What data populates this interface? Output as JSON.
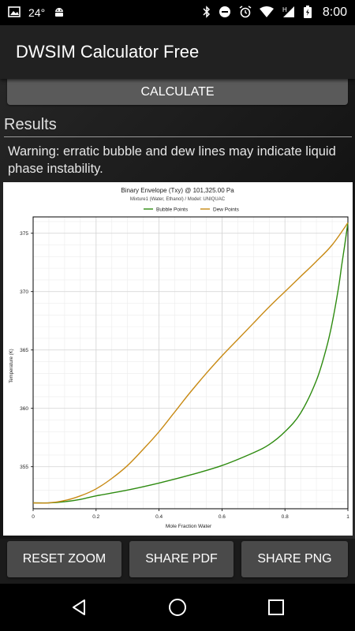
{
  "status_bar": {
    "notification_count": "24°",
    "time": "8:00"
  },
  "app_title": "DWSIM Calculator Free",
  "calculate_label": "CALCULATE",
  "results_title": "Results",
  "warning": "Warning: erratic bubble and dew lines may indicate liquid phase instability.",
  "buttons": {
    "reset_zoom": "RESET ZOOM",
    "share_pdf": "SHARE PDF",
    "share_png": "SHARE PNG"
  },
  "colors": {
    "bubble": "#2e8b10",
    "dew": "#c88a14"
  },
  "chart_data": {
    "type": "line",
    "title": "Binary Envelope (Txy) @ 101,325.00 Pa",
    "subtitle": "Mixture1 (Water, Ethanol) / Model: UNIQUAC",
    "xlabel": "Mole Fraction Water",
    "ylabel": "Temperature (K)",
    "xlim": [
      0,
      1
    ],
    "ylim": [
      351.4,
      376.4
    ],
    "xticks": [
      0,
      0.2,
      0.4,
      0.6,
      0.8,
      1
    ],
    "xticklabels": [
      "0",
      "0.2",
      "0.4",
      "0.6",
      "0.8",
      "1"
    ],
    "yticks": [
      355,
      360,
      365,
      370,
      375
    ],
    "yticklabels": [
      "355",
      "360",
      "365",
      "370",
      "375"
    ],
    "grid": true,
    "legend": "top-center",
    "series": [
      {
        "name": "Bubble Points",
        "x": [
          0,
          0.05,
          0.1,
          0.15,
          0.2,
          0.3,
          0.4,
          0.5,
          0.6,
          0.7,
          0.75,
          0.8,
          0.85,
          0.9,
          0.93,
          0.95,
          0.97,
          0.98,
          0.99,
          1.0
        ],
        "y": [
          351.9,
          351.9,
          352.0,
          352.2,
          352.5,
          353.0,
          353.6,
          354.3,
          355.1,
          356.2,
          356.9,
          358.0,
          359.6,
          362.4,
          365.0,
          367.3,
          370.3,
          372.2,
          374.0,
          375.9
        ]
      },
      {
        "name": "Dew Points",
        "x": [
          0,
          0.05,
          0.1,
          0.15,
          0.2,
          0.25,
          0.3,
          0.35,
          0.4,
          0.45,
          0.5,
          0.55,
          0.6,
          0.65,
          0.7,
          0.75,
          0.8,
          0.85,
          0.9,
          0.95,
          1.0
        ],
        "y": [
          351.9,
          351.9,
          352.1,
          352.5,
          353.1,
          354.0,
          355.1,
          356.5,
          358.0,
          359.7,
          361.4,
          363.0,
          364.5,
          365.9,
          367.3,
          368.7,
          370.0,
          371.3,
          372.6,
          374.0,
          375.9
        ]
      }
    ]
  }
}
